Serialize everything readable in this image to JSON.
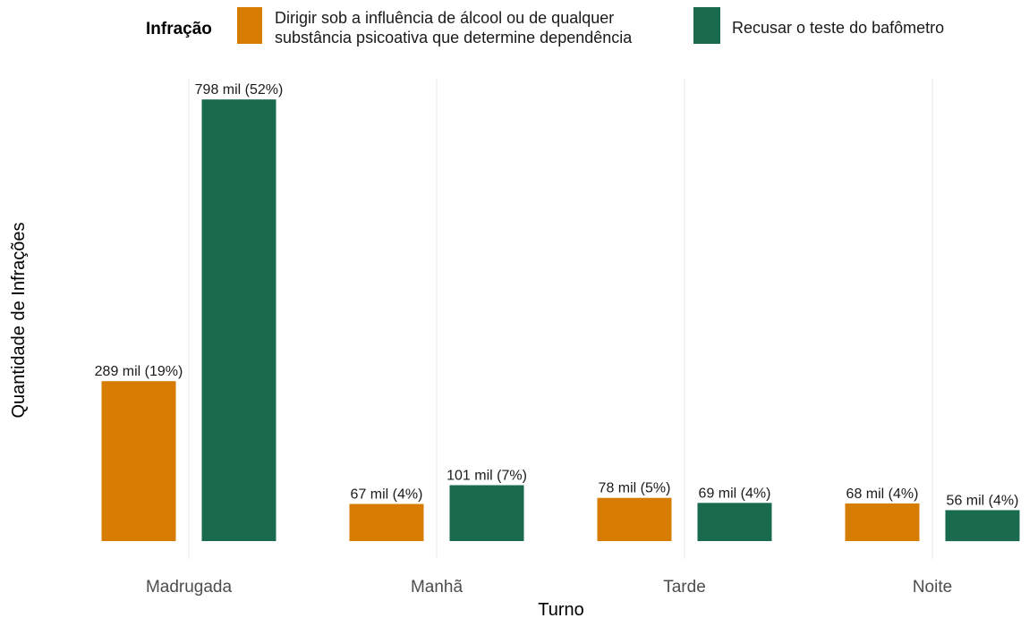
{
  "chart_data": {
    "type": "bar",
    "xlabel": "Turno",
    "ylabel": "Quantidade de Infrações",
    "categories": [
      "Madrugada",
      "Manhã",
      "Tarde",
      "Noite"
    ],
    "legend": {
      "title": "Infração",
      "placement": "top",
      "entries": [
        [
          "Dirigir sob a influência de álcool ou de qualquer",
          "substância psicoativa que determine dependência"
        ],
        [
          "Recusar o teste do bafômetro"
        ]
      ]
    },
    "series": [
      {
        "name": "Dirigir sob a influência de álcool ou de qualquer substância psicoativa que determine dependência",
        "color": "#D67C00",
        "values": [
          289000,
          67000,
          78000,
          68000
        ],
        "labels": [
          "289 mil (19%)",
          "67 mil (4%)",
          "78 mil (5%)",
          "68 mil (4%)"
        ]
      },
      {
        "name": "Recusar o teste do bafômetro",
        "color": "#1A6B4E",
        "values": [
          798000,
          101000,
          69000,
          56000
        ],
        "labels": [
          "798 mil (52%)",
          "101 mil (7%)",
          "69 mil (4%)",
          "56 mil (4%)"
        ]
      }
    ],
    "ylim": [
      0,
      800000
    ],
    "grid": "vertical major lines only",
    "y_ticks_shown": false
  }
}
